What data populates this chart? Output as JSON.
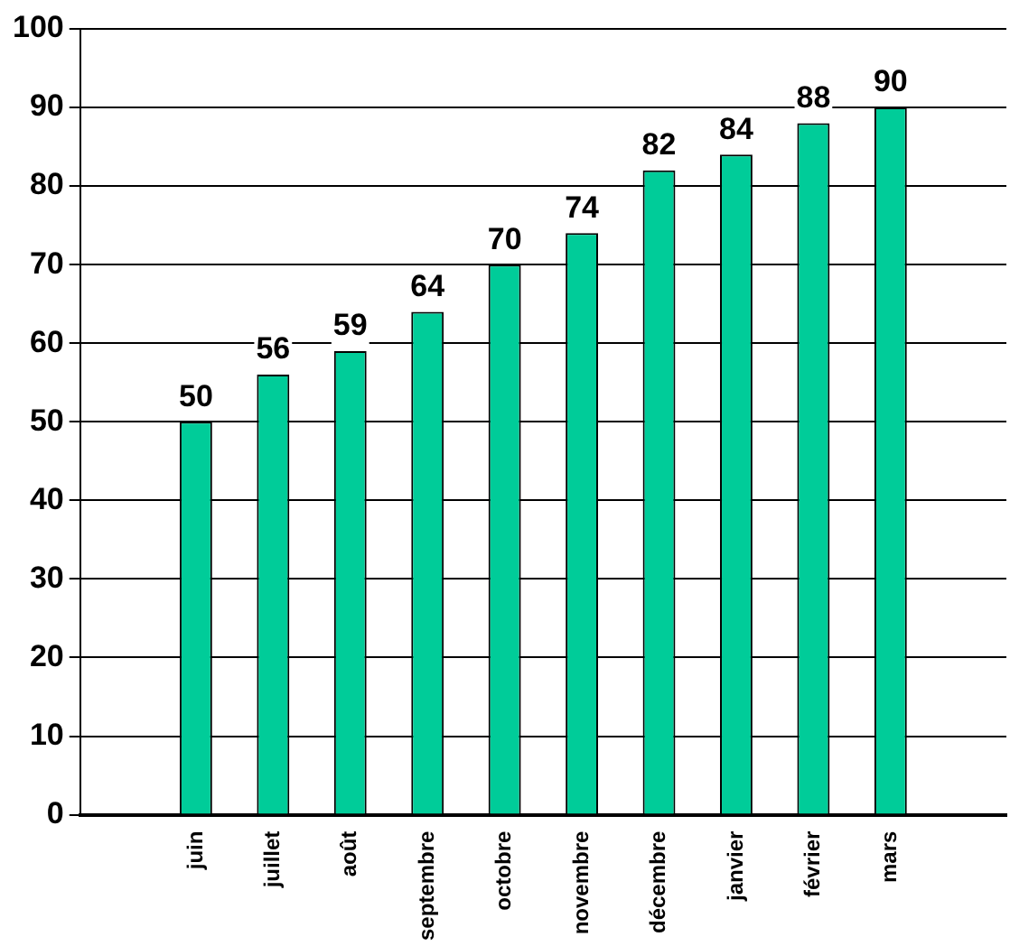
{
  "chart_data": {
    "type": "bar",
    "categories": [
      null,
      "juin",
      "juillet",
      "août",
      "septembre",
      "octobre",
      "novembre",
      "décembre",
      "janvier",
      "février",
      "mars",
      null
    ],
    "values": [
      null,
      50,
      56,
      59,
      64,
      70,
      74,
      82,
      84,
      88,
      90,
      null
    ],
    "color": "#00cc99",
    "ylim": [
      0,
      100
    ],
    "yticks": [
      0,
      10,
      20,
      30,
      40,
      50,
      60,
      70,
      80,
      90,
      100
    ],
    "grid": "y",
    "legend": false,
    "data_labels": true
  }
}
